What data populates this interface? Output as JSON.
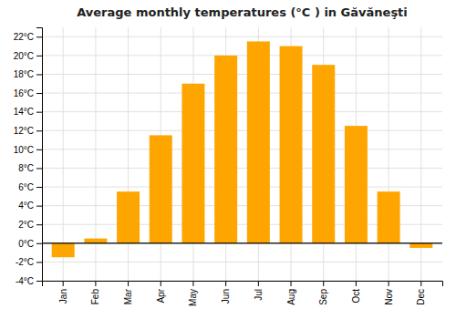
{
  "chart_data": {
    "type": "bar",
    "title": "Average monthly temperatures (°C ) in Găvăneşti",
    "categories": [
      "Jan",
      "Feb",
      "Mar",
      "Apr",
      "May",
      "Jun",
      "Jul",
      "Aug",
      "Sep",
      "Oct",
      "Nov",
      "Dec"
    ],
    "values": [
      -1.5,
      0.5,
      5.5,
      11.5,
      17.0,
      20.0,
      21.5,
      21.0,
      19.0,
      12.5,
      5.5,
      -0.5
    ],
    "color": "#FFA500",
    "ylim": [
      -4,
      23
    ],
    "yticks": [
      {
        "value": -4,
        "label": "-4°C"
      },
      {
        "value": -2,
        "label": "-2°C"
      },
      {
        "value": 0,
        "label": "0°C"
      },
      {
        "value": 2,
        "label": "2°C"
      },
      {
        "value": 4,
        "label": "4°C"
      },
      {
        "value": 6,
        "label": "6°C"
      },
      {
        "value": 8,
        "label": "8°C"
      },
      {
        "value": 10,
        "label": "10°C"
      },
      {
        "value": 12,
        "label": "12°C"
      },
      {
        "value": 14,
        "label": "14°C"
      },
      {
        "value": 16,
        "label": "16°C"
      },
      {
        "value": 18,
        "label": "18°C"
      },
      {
        "value": 20,
        "label": "20°C"
      },
      {
        "value": 22,
        "label": "22°C"
      }
    ],
    "grid": true
  }
}
